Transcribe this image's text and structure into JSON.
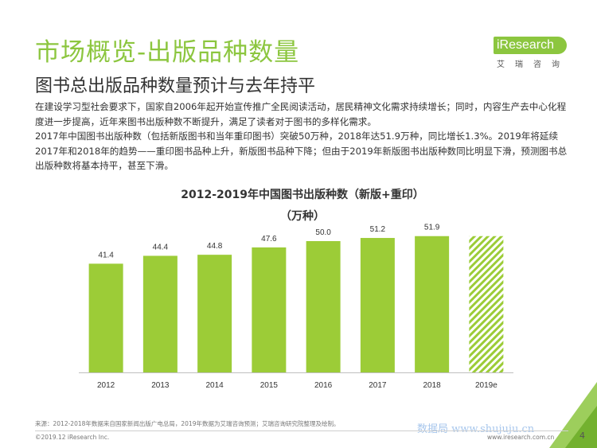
{
  "header": {
    "title": "市场概览-出版品种数量",
    "subtitle": "图书总出版品种数量预计与去年持平"
  },
  "logo": {
    "brand": "iResearch",
    "sub": "艾瑞咨询"
  },
  "body": {
    "paragraph1": "在建设学习型社会要求下，国家自2006年起开始宣传推广全民阅读活动，居民精神文化需求持续增长；同时，内容生产去中心化程度进一步提高，近年来图书出版种数不断提升，满足了读者对于图书的多样化需求。",
    "paragraph2": "2017年中国图书出版种数（包括新版图书和当年重印图书）突破50万种，2018年达51.9万种，同比增长1.3%。2019年将延续2017年和2018年的趋势——重印图书品种上升，新版图书品种下降；但由于2019年新版图书出版种数同比明显下滑，预测图书总出版种数将基本持平，甚至下滑。"
  },
  "chart_data": {
    "type": "bar",
    "title": "2012-2019年中国图书出版种数（新版+重印）",
    "subtitle": "（万种）",
    "categories": [
      "2012",
      "2013",
      "2014",
      "2015",
      "2016",
      "2017",
      "2018",
      "2019e"
    ],
    "values": [
      41.4,
      44.4,
      44.8,
      47.6,
      50.0,
      51.2,
      51.9,
      null
    ],
    "value_labels": [
      "41.4",
      "44.4",
      "44.8",
      "47.6",
      "50.0",
      "51.2",
      "51.9",
      ""
    ],
    "forecast_index": 7,
    "forecast_height": 51.9,
    "xlabel": "",
    "ylabel": "",
    "ylim": [
      0,
      60
    ],
    "grid": false,
    "colors": {
      "bar": "#9ccc37",
      "forecast": "#9ccc37"
    }
  },
  "footer": {
    "source": "来源：2012-2018年数据来自国家新闻出版广电总局，2019年数据为艾瑞咨询预测；艾瑞咨询研究院整理及绘制。",
    "copyright": "©2019.12 iResearch Inc.",
    "url": "www.iresearch.com.cn",
    "page": "4",
    "watermark": "数据局 www.shujuju.cn"
  },
  "colors": {
    "accent": "#8cc63f",
    "text": "#333333"
  }
}
